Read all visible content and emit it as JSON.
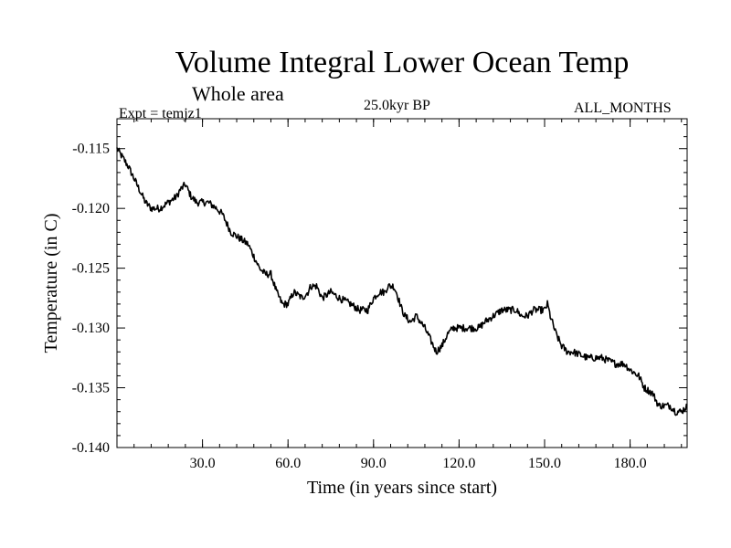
{
  "chart_data": {
    "type": "line",
    "title": "Volume Integral Lower Ocean Temp",
    "subtitle": "Whole area",
    "experiment": "Expt = temjz1",
    "period": "25.0kyr BP",
    "months": "ALL_MONTHS",
    "xlabel": "Time (in years since start)",
    "ylabel": "Temperature (in C)",
    "xlim": [
      0,
      200
    ],
    "ylim": [
      -0.14,
      -0.1125
    ],
    "xticks": [
      30,
      60,
      90,
      120,
      150,
      180
    ],
    "xtick_labels": [
      "30.0",
      "60.0",
      "90.0",
      "120.0",
      "150.0",
      "180.0"
    ],
    "yticks": [
      -0.14,
      -0.135,
      -0.13,
      -0.125,
      -0.12,
      -0.115
    ],
    "ytick_labels": [
      "-0.140",
      "-0.135",
      "-0.130",
      "-0.125",
      "-0.120",
      "-0.115"
    ],
    "grid": false,
    "series": [
      {
        "name": "Volume Integral Lower Ocean Temp",
        "x": [
          0,
          4,
          8,
          10,
          12,
          15,
          18,
          21,
          22,
          24,
          26,
          28,
          30,
          32,
          35,
          37,
          40,
          43,
          46,
          48,
          50,
          52,
          54,
          56,
          58,
          60,
          62,
          65,
          67,
          68,
          70,
          72,
          75,
          78,
          82,
          85,
          88,
          90,
          92,
          94,
          95,
          97,
          98,
          100,
          101,
          103,
          105,
          108,
          110,
          112,
          114,
          116,
          118,
          120,
          122,
          125,
          127,
          129,
          132,
          135,
          137,
          140,
          142,
          144,
          146,
          148,
          150,
          151,
          152,
          154,
          156,
          158,
          160,
          165,
          167,
          170,
          175,
          178,
          180,
          183,
          185,
          188,
          190,
          192,
          194,
          196,
          198,
          200
        ],
        "y": [
          -0.115,
          -0.1165,
          -0.1185,
          -0.1195,
          -0.12,
          -0.12,
          -0.1195,
          -0.119,
          -0.1185,
          -0.118,
          -0.119,
          -0.1195,
          -0.1195,
          -0.1195,
          -0.12,
          -0.1205,
          -0.122,
          -0.1225,
          -0.123,
          -0.124,
          -0.125,
          -0.1255,
          -0.1255,
          -0.127,
          -0.128,
          -0.128,
          -0.127,
          -0.1275,
          -0.127,
          -0.1265,
          -0.1265,
          -0.1275,
          -0.127,
          -0.1275,
          -0.128,
          -0.1285,
          -0.1285,
          -0.1275,
          -0.127,
          -0.127,
          -0.1265,
          -0.1265,
          -0.127,
          -0.1285,
          -0.129,
          -0.1295,
          -0.129,
          -0.13,
          -0.131,
          -0.132,
          -0.1315,
          -0.1305,
          -0.13,
          -0.13,
          -0.13,
          -0.13,
          -0.13,
          -0.1295,
          -0.129,
          -0.1285,
          -0.1285,
          -0.1285,
          -0.129,
          -0.129,
          -0.1285,
          -0.1285,
          -0.1285,
          -0.128,
          -0.129,
          -0.1305,
          -0.1315,
          -0.132,
          -0.132,
          -0.1325,
          -0.1325,
          -0.1325,
          -0.133,
          -0.133,
          -0.1335,
          -0.134,
          -0.135,
          -0.1355,
          -0.1365,
          -0.1365,
          -0.1365,
          -0.137,
          -0.137,
          -0.1365
        ]
      }
    ]
  }
}
